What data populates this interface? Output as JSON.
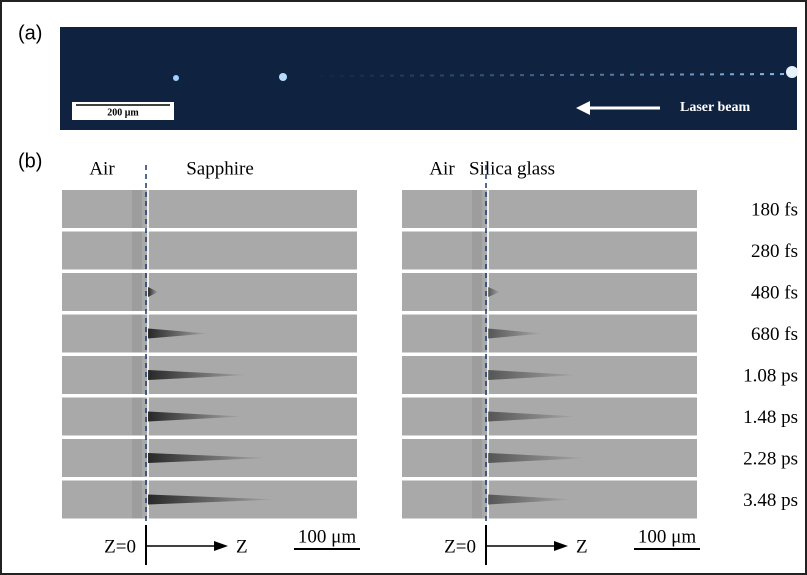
{
  "panel_a": {
    "label": "(a)",
    "scale_bar": "200 μm",
    "annotation": "Laser beam"
  },
  "panel_b": {
    "label": "(b)",
    "left": {
      "medium_before": "Air",
      "medium_after": "Sapphire",
      "axis_origin": "Z=0",
      "axis_label": "Z",
      "scale_bar": "100 μm"
    },
    "right": {
      "medium_before": "Air",
      "medium_after": "Silica glass",
      "axis_origin": "Z=0",
      "axis_label": "Z",
      "scale_bar": "100 μm"
    },
    "delays": [
      "180 fs",
      "280 fs",
      "480 fs",
      "680 fs",
      "1.08 ps",
      "1.48 ps",
      "2.28 ps",
      "3.48 ps"
    ]
  }
}
